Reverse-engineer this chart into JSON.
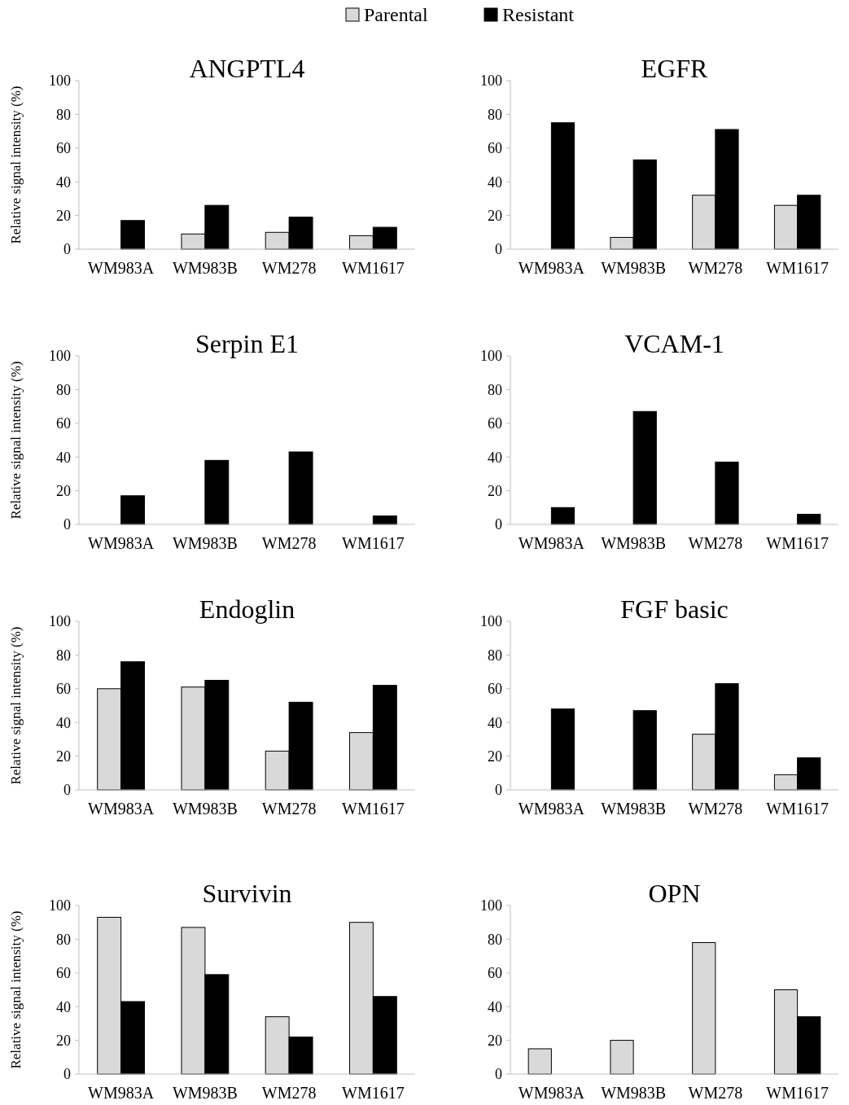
{
  "chart_data": [
    {
      "type": "bar",
      "title": "ANGPTL4",
      "ylabel": "Relative signal intensity (%)",
      "categories": [
        "WM983A",
        "WM983B",
        "WM278",
        "WM1617"
      ],
      "ylim": [
        0,
        100
      ],
      "yticks": [
        0,
        20,
        40,
        60,
        80,
        100
      ],
      "legend": "top",
      "series": [
        {
          "name": "Parental",
          "color": "#d9d9d9",
          "values": [
            0,
            9,
            10,
            8
          ]
        },
        {
          "name": "Resistant",
          "color": "#000000",
          "values": [
            17,
            26,
            19,
            13
          ]
        }
      ]
    },
    {
      "type": "bar",
      "title": "EGFR",
      "categories": [
        "WM983A",
        "WM983B",
        "WM278",
        "WM1617"
      ],
      "ylim": [
        0,
        100
      ],
      "yticks": [
        0,
        20,
        40,
        60,
        80,
        100
      ],
      "series": [
        {
          "color": "#d9d9d9",
          "values": [
            0,
            7,
            32,
            26
          ]
        },
        {
          "color": "#000000",
          "values": [
            75,
            53,
            71,
            32
          ]
        }
      ]
    },
    {
      "type": "bar",
      "title": "Serpin E1",
      "ylabel": "Relative signal intensity (%)",
      "categories": [
        "WM983A",
        "WM983B",
        "WM278",
        "WM1617"
      ],
      "ylim": [
        0,
        100
      ],
      "yticks": [
        0,
        20,
        40,
        60,
        80,
        100
      ],
      "series": [
        {
          "color": "#d9d9d9",
          "values": [
            0,
            0,
            0,
            0
          ]
        },
        {
          "color": "#000000",
          "values": [
            17,
            38,
            43,
            5
          ]
        }
      ]
    },
    {
      "type": "bar",
      "title": "VCAM-1",
      "categories": [
        "WM983A",
        "WM983B",
        "WM278",
        "WM1617"
      ],
      "ylim": [
        0,
        100
      ],
      "yticks": [
        0,
        20,
        40,
        60,
        80,
        100
      ],
      "series": [
        {
          "color": "#d9d9d9",
          "values": [
            0,
            0,
            0,
            0
          ]
        },
        {
          "color": "#000000",
          "values": [
            10,
            67,
            37,
            6
          ]
        }
      ]
    },
    {
      "type": "bar",
      "title": "Endoglin",
      "ylabel": "Relative signal intensity (%)",
      "categories": [
        "WM983A",
        "WM983B",
        "WM278",
        "WM1617"
      ],
      "ylim": [
        0,
        100
      ],
      "yticks": [
        0,
        20,
        40,
        60,
        80,
        100
      ],
      "series": [
        {
          "color": "#d9d9d9",
          "values": [
            60,
            61,
            23,
            34
          ]
        },
        {
          "color": "#000000",
          "values": [
            76,
            65,
            52,
            62
          ]
        }
      ]
    },
    {
      "type": "bar",
      "title": "FGF basic",
      "categories": [
        "WM983A",
        "WM983B",
        "WM278",
        "WM1617"
      ],
      "ylim": [
        0,
        100
      ],
      "yticks": [
        0,
        20,
        40,
        60,
        80,
        100
      ],
      "series": [
        {
          "color": "#d9d9d9",
          "values": [
            0,
            0,
            33,
            9
          ]
        },
        {
          "color": "#000000",
          "values": [
            48,
            47,
            63,
            19
          ]
        }
      ]
    },
    {
      "type": "bar",
      "title": "Survivin",
      "ylabel": "Relative signal intensity (%)",
      "categories": [
        "WM983A",
        "WM983B",
        "WM278",
        "WM1617"
      ],
      "ylim": [
        0,
        100
      ],
      "yticks": [
        0,
        20,
        40,
        60,
        80,
        100
      ],
      "series": [
        {
          "color": "#d9d9d9",
          "values": [
            93,
            87,
            34,
            90
          ]
        },
        {
          "color": "#000000",
          "values": [
            43,
            59,
            22,
            46
          ]
        }
      ]
    },
    {
      "type": "bar",
      "title": "OPN",
      "categories": [
        "WM983A",
        "WM983B",
        "WM278",
        "WM1617"
      ],
      "ylim": [
        0,
        100
      ],
      "yticks": [
        0,
        20,
        40,
        60,
        80,
        100
      ],
      "series": [
        {
          "color": "#d9d9d9",
          "values": [
            15,
            20,
            78,
            50
          ]
        },
        {
          "color": "#000000",
          "values": [
            0,
            0,
            0,
            34
          ]
        }
      ]
    }
  ]
}
